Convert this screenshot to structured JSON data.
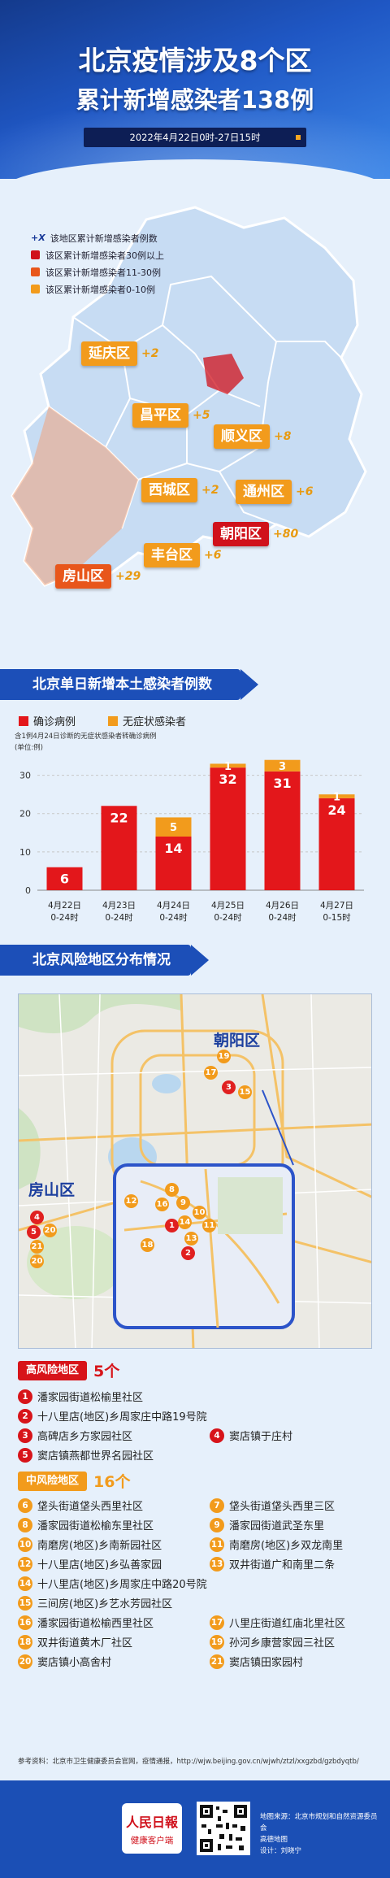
{
  "header": {
    "title_line1": "北京疫情涉及8个区",
    "title_line2": "累计新增感染者138例",
    "date_range": "2022年4月22日0时-27日15时"
  },
  "map_legend": [
    {
      "marker": "+X",
      "label": "该地区累计新增感染者例数",
      "color": ""
    },
    {
      "marker": "",
      "label": "该区累计新增感染者30例以上",
      "color": "#d0111b"
    },
    {
      "marker": "",
      "label": "该区累计新增感染者11-30例",
      "color": "#e8561b"
    },
    {
      "marker": "",
      "label": "该区累计新增感染者0-10例",
      "color": "#f29b1c"
    }
  ],
  "districts": [
    {
      "name": "延庆区",
      "count": "+2"
    },
    {
      "name": "昌平区",
      "count": "+5"
    },
    {
      "name": "顺义区",
      "count": "+8"
    },
    {
      "name": "西城区",
      "count": "+2"
    },
    {
      "name": "通州区",
      "count": "+6"
    },
    {
      "name": "朝阳区",
      "count": "+80"
    },
    {
      "name": "丰台区",
      "count": "+6"
    },
    {
      "name": "房山区",
      "count": "+29"
    }
  ],
  "chart_section_title": "北京单日新增本土感染者例数",
  "chart_data": {
    "type": "bar",
    "stacked": true,
    "categories": [
      "4月22日\n0-24时",
      "4月23日\n0-24时",
      "4月24日\n0-24时",
      "4月25日\n0-24时",
      "4月26日\n0-24时",
      "4月27日\n0-15时"
    ],
    "category_dates": [
      "4月22日",
      "4月23日",
      "4月24日",
      "4月25日",
      "4月26日",
      "4月27日"
    ],
    "category_times": [
      "0-24时",
      "0-24时",
      "0-24时",
      "0-24时",
      "0-24时",
      "0-15时"
    ],
    "series": [
      {
        "name": "确诊病例",
        "color": "#e3171b",
        "values": [
          6,
          22,
          14,
          32,
          31,
          24
        ]
      },
      {
        "name": "无症状感染者",
        "color": "#f29b1c",
        "values": [
          0,
          0,
          5,
          1,
          3,
          1
        ]
      }
    ],
    "note": "含1例4月24日诊断的无症状感染者转确诊病例",
    "unit": "(单位:例)",
    "yticks": [
      0,
      10,
      20,
      30
    ],
    "ylim": [
      0,
      35
    ],
    "grid": true,
    "legend_position": "top-left"
  },
  "risk_section_title": "北京风险地区分布情况",
  "risk_map": {
    "chaoyang_label": "朝阳区",
    "fangshan_label": "房山区"
  },
  "high_risk": {
    "tag": "高风险地区",
    "count": "5个",
    "color": "#d7141a",
    "items": [
      {
        "n": "1",
        "name": "潘家园街道松榆里社区"
      },
      {
        "n": "2",
        "name": "十八里店(地区)乡周家庄中路19号院"
      },
      {
        "n": "3",
        "name": "高碑店乡方家园社区"
      },
      {
        "n": "4",
        "name": "窦店镇于庄村"
      },
      {
        "n": "5",
        "name": "窦店镇燕都世界名园社区"
      }
    ]
  },
  "medium_risk": {
    "tag": "中风险地区",
    "count": "16个",
    "color": "#f29b1c",
    "items": [
      {
        "n": "6",
        "name": "垡头街道垡头西里社区"
      },
      {
        "n": "7",
        "name": "垡头街道垡头西里三区"
      },
      {
        "n": "8",
        "name": "潘家园街道松榆东里社区"
      },
      {
        "n": "9",
        "name": "潘家园街道武圣东里"
      },
      {
        "n": "10",
        "name": "南磨房(地区)乡南新园社区"
      },
      {
        "n": "11",
        "name": "南磨房(地区)乡双龙南里"
      },
      {
        "n": "12",
        "name": "十八里店(地区)乡弘善家园"
      },
      {
        "n": "13",
        "name": "双井街道广和南里二条"
      },
      {
        "n": "14",
        "name": "十八里店(地区)乡周家庄中路20号院"
      },
      {
        "n": "15",
        "name": "三间房(地区)乡艺水芳园社区"
      },
      {
        "n": "16",
        "name": "潘家园街道松榆西里社区"
      },
      {
        "n": "17",
        "name": "八里庄街道红庙北里社区"
      },
      {
        "n": "18",
        "name": "双井街道黄木厂社区"
      },
      {
        "n": "19",
        "name": "孙河乡康营家园三社区"
      },
      {
        "n": "20",
        "name": "窦店镇小高舍村"
      },
      {
        "n": "21",
        "name": "窦店镇田家园村"
      }
    ]
  },
  "source": "参考资料：北京市卫生健康委员会官网，疫情通报，http://wjw.beijing.gov.cn/wjwh/ztzl/xxgzbd/gzbdyqtb/",
  "footer": {
    "logo_line1": "人民日報",
    "logo_line2": "健康客户端",
    "map_credit": "地图来源：北京市规划和自然资源委员会",
    "map_credit2": "高德地图",
    "designer": "设计：刘晓宁"
  }
}
